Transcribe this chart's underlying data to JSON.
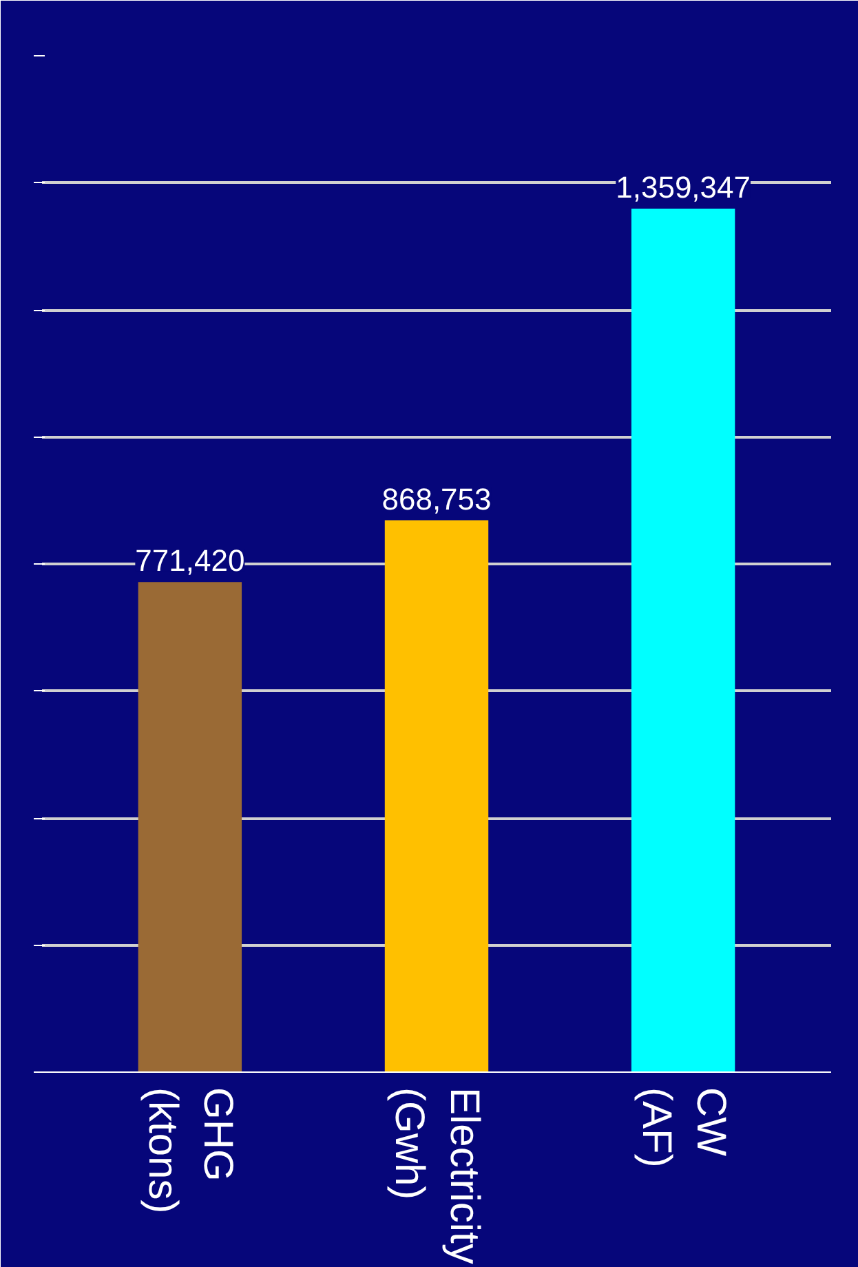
{
  "chart_data": {
    "type": "bar",
    "categories": [
      "GHG (ktons)",
      "Electricity (Gwh)",
      "CW (AF)"
    ],
    "values": [
      771420,
      868753,
      1359347
    ],
    "colors": [
      "#9a6a35",
      "#ffc000",
      "#00ffff"
    ],
    "ylim": [
      0,
      1600000
    ],
    "yticks": [
      {
        "value": 0,
        "label": null
      },
      {
        "value": 200000,
        "label": null
      },
      {
        "value": 400000,
        "label": null
      },
      {
        "value": 600000,
        "label": null
      },
      {
        "value": 800000,
        "label": null
      },
      {
        "value": 1000000,
        "label": null
      },
      {
        "value": 1200000,
        "label": null
      },
      {
        "value": 1400000,
        "label": null
      },
      {
        "value": 1600000,
        "label": null
      }
    ],
    "value_labels": [
      "771,420",
      "868,753",
      "1,359,347"
    ],
    "grid": "y",
    "tick_labels": "x"
  }
}
